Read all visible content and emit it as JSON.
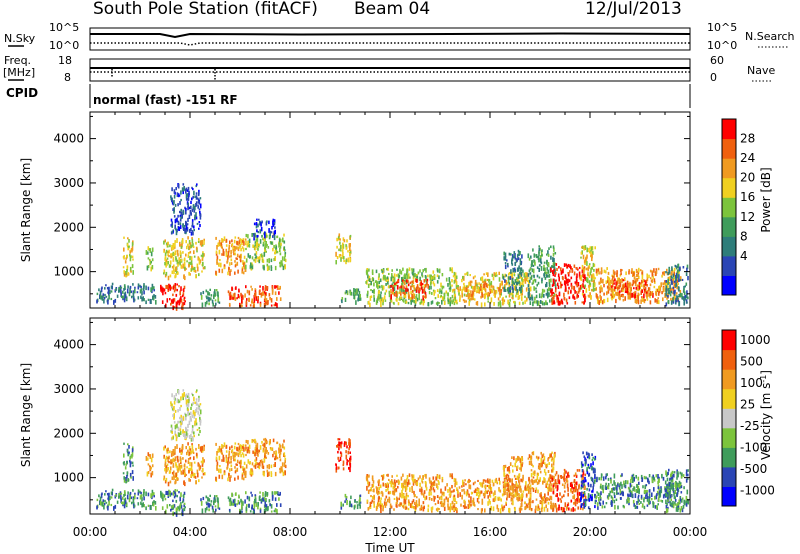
{
  "header": {
    "station": "South Pole Station (fitACF)",
    "beam": "Beam 04",
    "date": "12/Jul/2013"
  },
  "strip_labels": {
    "nsky": "N.Sky",
    "nsearch": "N.Search",
    "freq_line1": "Freq.",
    "freq_line2": "[MHz]",
    "nave": "Nave",
    "cpid": "CPID",
    "mode_text": "normal (fast) -151 RF",
    "noise_left_ticks": [
      "10^5",
      "10^0"
    ],
    "noise_right_ticks": [
      "10^5",
      "10^0"
    ],
    "freq_left_ticks": [
      "18",
      "8"
    ],
    "freq_right_ticks": [
      "60",
      "0"
    ]
  },
  "colors": {
    "power_scale": [
      "#0000ff",
      "#2a45b5",
      "#2e7d7a",
      "#3f9c5b",
      "#7cc43c",
      "#f0d020",
      "#f09a20",
      "#f0600e",
      "#ff0000"
    ],
    "velocity_scale": [
      "#0000ff",
      "#2a45b5",
      "#3f9c5b",
      "#7cc43c",
      "#c8c8c8",
      "#f0d020",
      "#f09a20",
      "#f0600e",
      "#ff0000"
    ]
  },
  "chart_data": [
    {
      "type": "heatmap",
      "name": "power",
      "ylabel": "Slant Range [km]",
      "colorbar_label": "Power [dB]",
      "colorbar_ticks": [
        "28",
        "24",
        "20",
        "16",
        "12",
        "8",
        "4"
      ],
      "x_ticks": [
        "00:00",
        "04:00",
        "08:00",
        "12:00",
        "16:00",
        "20:00",
        "00:00"
      ],
      "y_ticks": [
        "1000",
        "2000",
        "3000",
        "4000"
      ],
      "xlim_hours": [
        0,
        24
      ],
      "ylim_km": [
        180,
        4600
      ],
      "regions": [
        {
          "t0": 0.2,
          "t1": 2.6,
          "r0": 350,
          "r1": 750,
          "level": 2
        },
        {
          "t0": 1.3,
          "t1": 1.7,
          "r0": 900,
          "r1": 1800,
          "level": 5
        },
        {
          "t0": 2.2,
          "t1": 2.5,
          "r0": 1100,
          "r1": 1600,
          "level": 4
        },
        {
          "t0": 2.8,
          "t1": 3.8,
          "r0": 200,
          "r1": 750,
          "level": 8
        },
        {
          "t0": 2.9,
          "t1": 4.6,
          "r0": 900,
          "r1": 1800,
          "level": 5
        },
        {
          "t0": 3.2,
          "t1": 4.4,
          "r0": 1900,
          "r1": 3000,
          "level": 1
        },
        {
          "t0": 4.4,
          "t1": 5.2,
          "r0": 300,
          "r1": 650,
          "level": 3
        },
        {
          "t0": 5.0,
          "t1": 6.2,
          "r0": 1000,
          "r1": 1800,
          "level": 6
        },
        {
          "t0": 5.5,
          "t1": 7.6,
          "r0": 250,
          "r1": 700,
          "level": 7
        },
        {
          "t0": 6.2,
          "t1": 7.8,
          "r0": 1100,
          "r1": 1900,
          "level": 4
        },
        {
          "t0": 6.5,
          "t1": 7.4,
          "r0": 1800,
          "r1": 2200,
          "level": 1
        },
        {
          "t0": 9.8,
          "t1": 10.4,
          "r0": 1200,
          "r1": 1900,
          "level": 5
        },
        {
          "t0": 10.0,
          "t1": 10.8,
          "r0": 350,
          "r1": 650,
          "level": 3
        },
        {
          "t0": 11.0,
          "t1": 14.5,
          "r0": 300,
          "r1": 1100,
          "level": 4
        },
        {
          "t0": 12.0,
          "t1": 13.5,
          "r0": 450,
          "r1": 850,
          "level": 7
        },
        {
          "t0": 14.5,
          "t1": 17.6,
          "r0": 300,
          "r1": 1000,
          "level": 5
        },
        {
          "t0": 15.0,
          "t1": 16.5,
          "r0": 450,
          "r1": 800,
          "level": 6
        },
        {
          "t0": 16.5,
          "t1": 17.3,
          "r0": 600,
          "r1": 1500,
          "level": 2
        },
        {
          "t0": 17.5,
          "t1": 18.6,
          "r0": 300,
          "r1": 1600,
          "level": 3
        },
        {
          "t0": 18.4,
          "t1": 19.8,
          "r0": 300,
          "r1": 1200,
          "level": 8
        },
        {
          "t0": 19.6,
          "t1": 20.2,
          "r0": 350,
          "r1": 1600,
          "level": 5
        },
        {
          "t0": 20.2,
          "t1": 23.6,
          "r0": 350,
          "r1": 1100,
          "level": 6
        },
        {
          "t0": 20.8,
          "t1": 22.5,
          "r0": 450,
          "r1": 850,
          "level": 7
        },
        {
          "t0": 23.0,
          "t1": 23.9,
          "r0": 300,
          "r1": 1200,
          "level": 2
        }
      ]
    },
    {
      "type": "heatmap",
      "name": "velocity",
      "ylabel": "Slant Range [km]",
      "colorbar_label": "Velocity [m s^-1]",
      "colorbar_ticks": [
        "1000",
        "500",
        "100",
        "25",
        "-25",
        "-100",
        "-500",
        "-1000"
      ],
      "x_ticks": [
        "00:00",
        "04:00",
        "08:00",
        "12:00",
        "16:00",
        "20:00",
        "00:00"
      ],
      "y_ticks": [
        "1000",
        "2000",
        "3000",
        "4000"
      ],
      "xlabel": "Time UT",
      "xlim_hours": [
        0,
        24
      ],
      "ylim_km": [
        180,
        4600
      ],
      "regions": [
        {
          "t0": 0.2,
          "t1": 2.6,
          "r0": 350,
          "r1": 750,
          "level": 2
        },
        {
          "t0": 1.3,
          "t1": 1.7,
          "r0": 900,
          "r1": 1800,
          "level": 2
        },
        {
          "t0": 2.2,
          "t1": 2.5,
          "r0": 1100,
          "r1": 1600,
          "level": 6
        },
        {
          "t0": 2.8,
          "t1": 3.8,
          "r0": 200,
          "r1": 750,
          "level": 2
        },
        {
          "t0": 2.9,
          "t1": 4.6,
          "r0": 900,
          "r1": 1800,
          "level": 6
        },
        {
          "t0": 3.2,
          "t1": 4.4,
          "r0": 1900,
          "r1": 3000,
          "level": 4
        },
        {
          "t0": 4.4,
          "t1": 5.2,
          "r0": 300,
          "r1": 650,
          "level": 2
        },
        {
          "t0": 5.0,
          "t1": 6.2,
          "r0": 1000,
          "r1": 1800,
          "level": 6
        },
        {
          "t0": 5.5,
          "t1": 7.6,
          "r0": 250,
          "r1": 700,
          "level": 2
        },
        {
          "t0": 6.2,
          "t1": 7.8,
          "r0": 1100,
          "r1": 1900,
          "level": 6
        },
        {
          "t0": 9.8,
          "t1": 10.4,
          "r0": 1200,
          "r1": 1900,
          "level": 8
        },
        {
          "t0": 10.0,
          "t1": 10.8,
          "r0": 350,
          "r1": 650,
          "level": 2
        },
        {
          "t0": 11.0,
          "t1": 14.5,
          "r0": 300,
          "r1": 1100,
          "level": 6
        },
        {
          "t0": 14.5,
          "t1": 17.6,
          "r0": 300,
          "r1": 1000,
          "level": 6
        },
        {
          "t0": 16.5,
          "t1": 17.3,
          "r0": 600,
          "r1": 1500,
          "level": 6
        },
        {
          "t0": 17.5,
          "t1": 18.6,
          "r0": 300,
          "r1": 1600,
          "level": 6
        },
        {
          "t0": 18.4,
          "t1": 19.8,
          "r0": 300,
          "r1": 1200,
          "level": 7
        },
        {
          "t0": 19.6,
          "t1": 20.2,
          "r0": 350,
          "r1": 1600,
          "level": 1
        },
        {
          "t0": 20.2,
          "t1": 23.6,
          "r0": 350,
          "r1": 1100,
          "level": 2
        },
        {
          "t0": 23.0,
          "t1": 23.9,
          "r0": 300,
          "r1": 1200,
          "level": 2
        }
      ]
    }
  ]
}
